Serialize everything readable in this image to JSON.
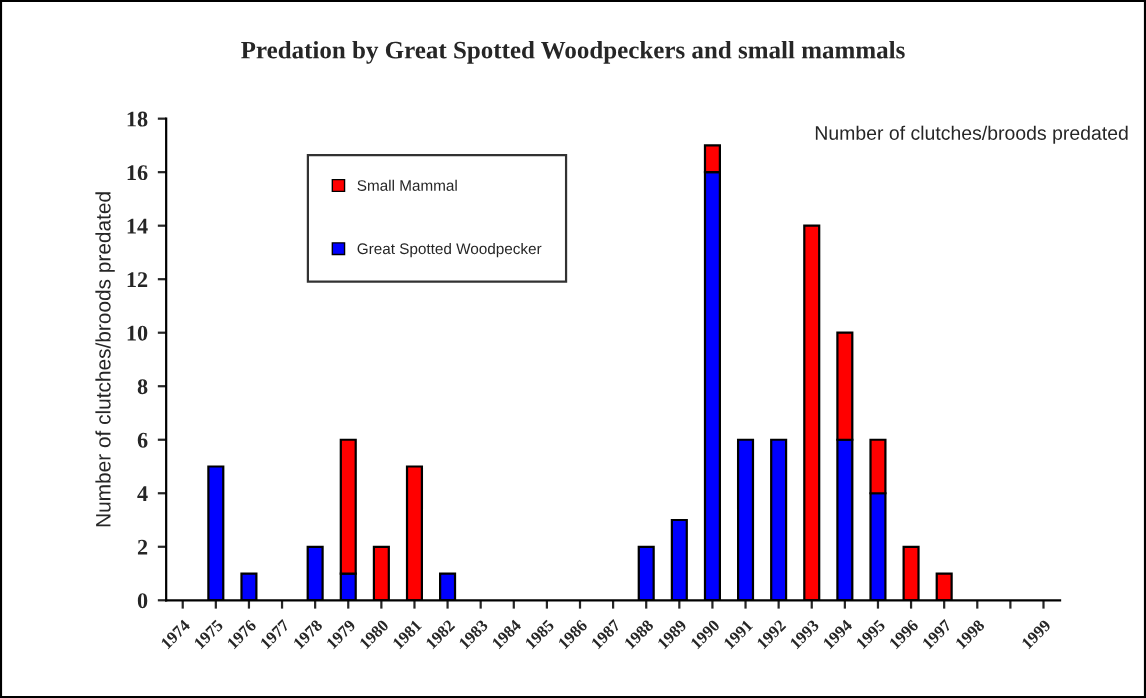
{
  "chart_data": {
    "type": "bar",
    "title": "Predation by Great Spotted Woodpeckers and small mammals",
    "ylabel": "Number of clutches/broods predated",
    "annotations": [
      "Number of clutches/broods predated"
    ],
    "categories": [
      "1974",
      "1975",
      "1976",
      "1977",
      "1978",
      "1979",
      "1980",
      "1981",
      "1982",
      "1983",
      "1984",
      "1985",
      "1986",
      "1987",
      "1988",
      "1989",
      "1990",
      "1991",
      "1992",
      "1993",
      "1994",
      "1995",
      "1996",
      "1997",
      "1998",
      null,
      "1999"
    ],
    "stacked": true,
    "series": [
      {
        "name": "Great Spotted Woodpecker",
        "color": "#0000ff",
        "values": [
          null,
          5,
          1,
          null,
          2,
          1,
          null,
          null,
          1,
          null,
          null,
          null,
          null,
          null,
          2,
          3,
          16,
          6,
          6,
          null,
          6,
          4,
          null,
          null,
          null,
          null,
          null
        ]
      },
      {
        "name": "Small Mammal",
        "color": "#ff0000",
        "values": [
          null,
          null,
          null,
          null,
          null,
          5,
          2,
          5,
          null,
          null,
          null,
          null,
          null,
          null,
          null,
          null,
          1,
          null,
          null,
          14,
          4,
          2,
          2,
          1,
          null,
          null,
          null
        ]
      }
    ],
    "ylim": [
      0,
      18
    ],
    "yticks": [
      0,
      2,
      4,
      6,
      8,
      10,
      12,
      14,
      16,
      18
    ],
    "grid": false,
    "legend": "top left"
  }
}
